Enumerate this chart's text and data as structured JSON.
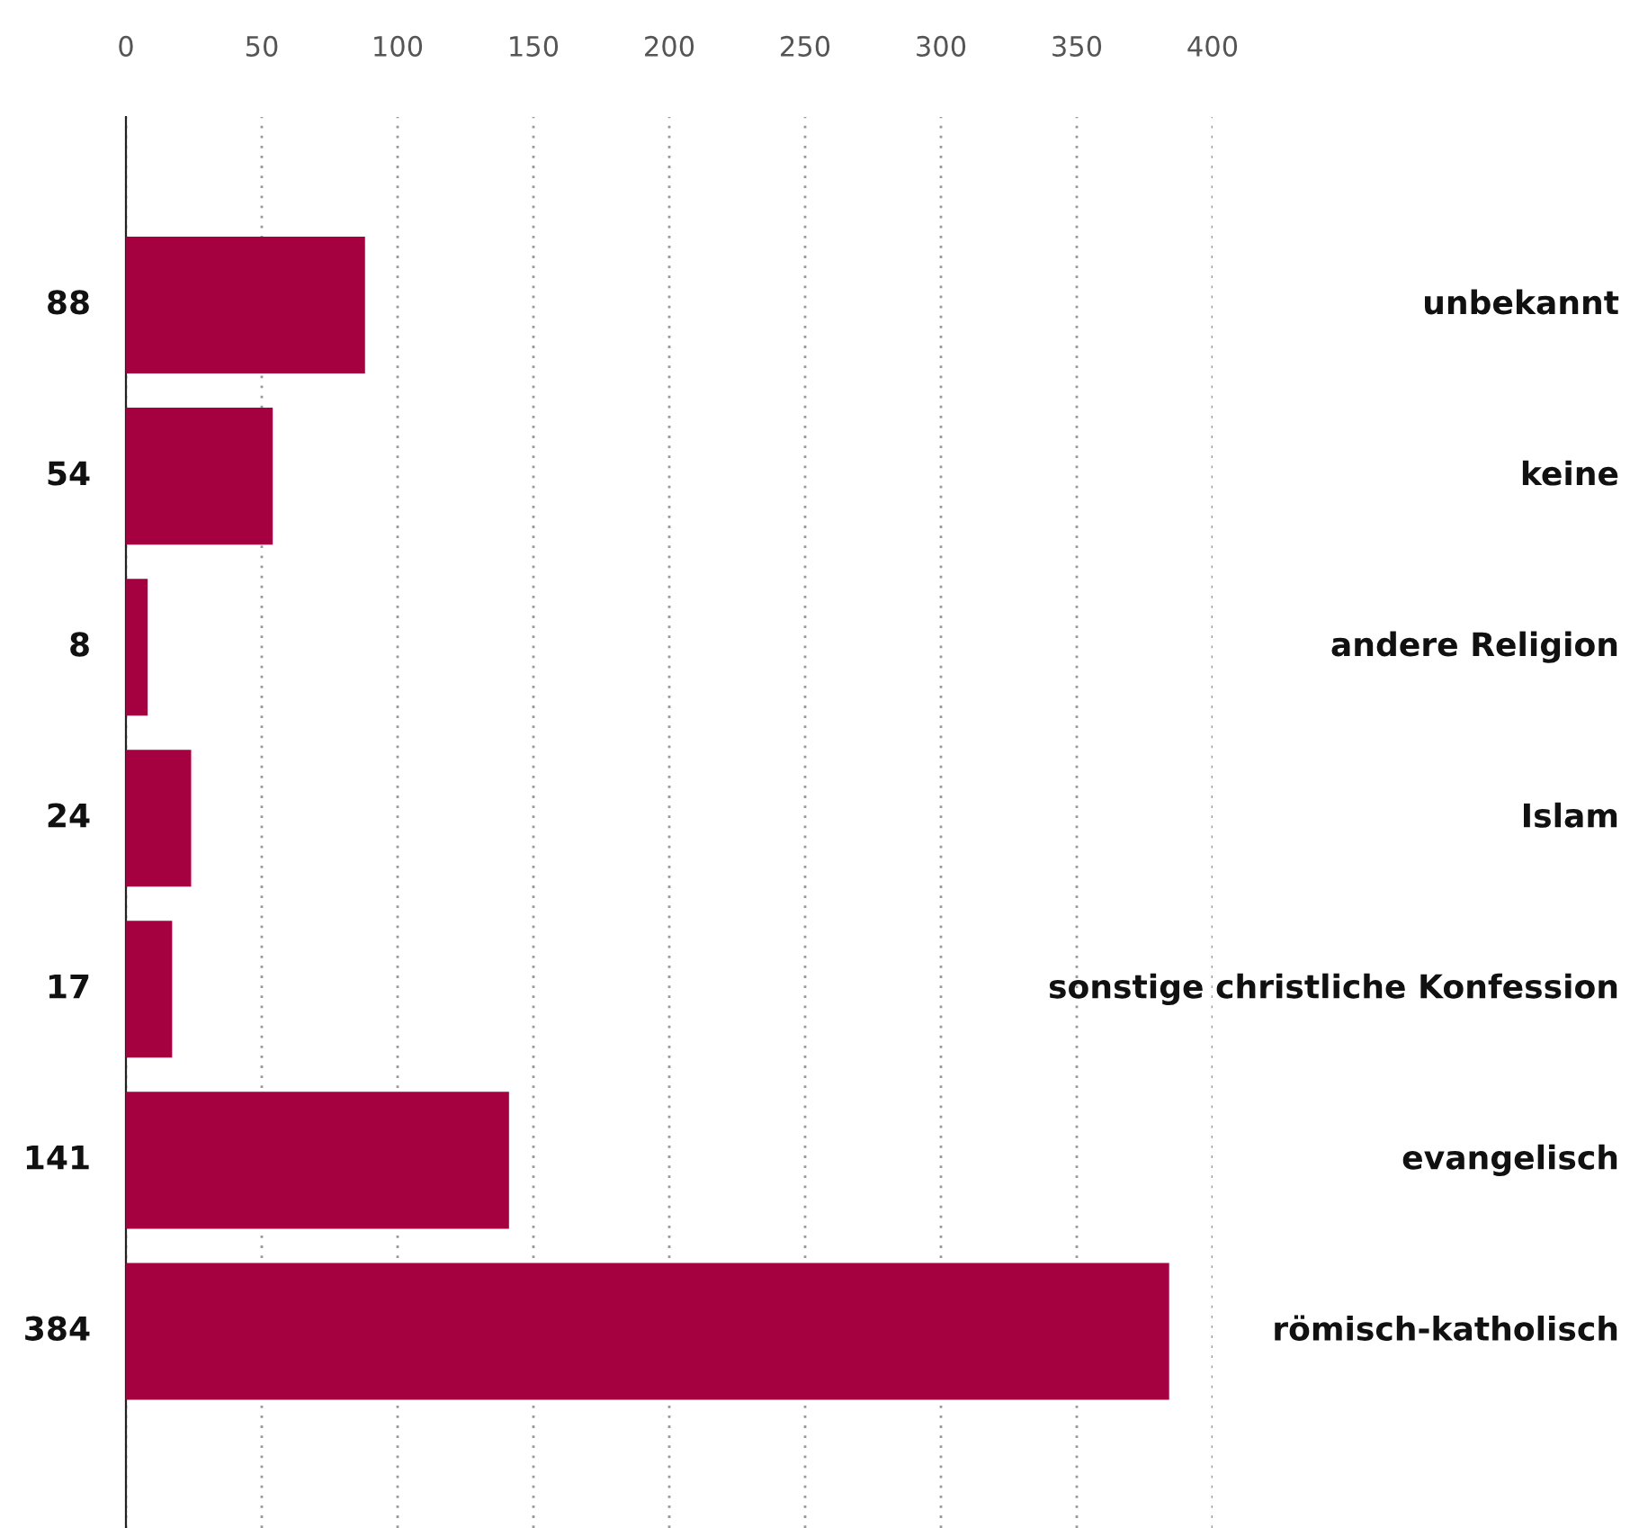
{
  "chart_data": {
    "type": "bar",
    "orientation": "horizontal",
    "categories": [
      "unbekannt",
      "keine",
      "andere Religion",
      "Islam",
      "sonstige christliche Konfession",
      "evangelisch",
      "römisch-katholisch"
    ],
    "values": [
      88,
      54,
      8,
      24,
      17,
      141,
      384
    ],
    "color": "#a50040",
    "xlim": [
      0,
      400
    ],
    "xticks": [
      0,
      50,
      100,
      150,
      200,
      250,
      300,
      350,
      400
    ],
    "grid": "x",
    "data_labels": true
  }
}
